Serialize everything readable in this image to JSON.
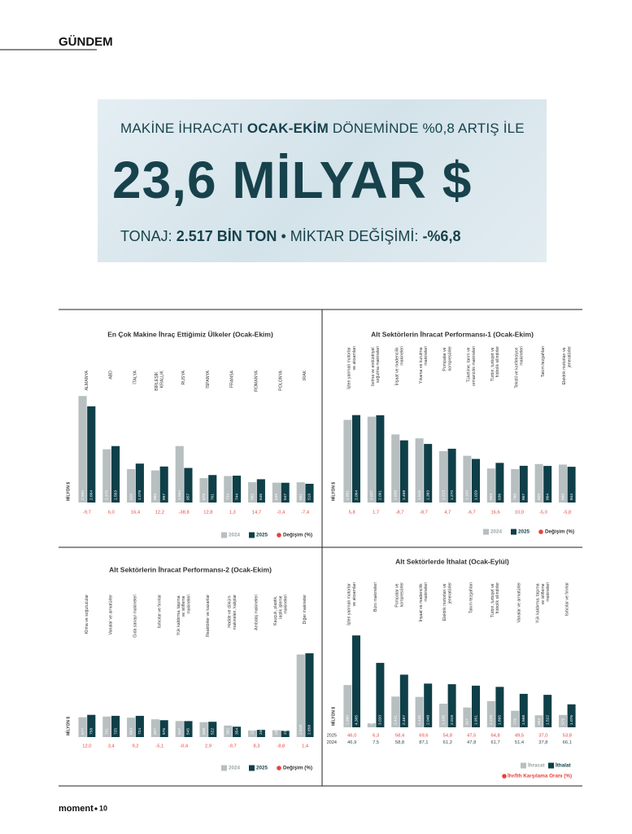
{
  "header": {
    "section": "GÜNDEM"
  },
  "banner": {
    "line1": [
      "MAKİNE İHRACATI",
      "OCAK-EKİM",
      "DÖNEMİNDE %0,8 ARTIŞ İLE"
    ],
    "headline": "23,6 MİLYAR $",
    "line3": [
      "TONAJ:",
      "2.517 BİN TON",
      "• MİKTAR DEĞİŞİMİ:",
      "-%6,8"
    ]
  },
  "chart_data": [
    {
      "type": "bar",
      "title": "En Çok Makine İhraç Ettiğimiz Ülkeler (Ocak-Ekim)",
      "y_label": "MİLYON $",
      "categories": [
        "ALMANYA",
        "ABD",
        "İTALYA",
        "BİRLEŞİK KRALLIK",
        "RUSYA",
        "İSPANYA",
        "FRANSA",
        "ROMANYA",
        "POLONYA",
        "IRAK"
      ],
      "ylim": [
        0,
        3000
      ],
      "series": [
        {
          "name": "2024",
          "color": "#b7bfc1",
          "values": [
            2950,
            1475,
            926,
            889,
            1564,
            675,
            734,
            562,
            549,
            561
          ],
          "value_labels": [
            "2.950",
            "1.475",
            "926",
            "889",
            "1.564",
            "675",
            "734",
            "562",
            "549",
            "561"
          ]
        },
        {
          "name": "2025",
          "color": "#0f3f48",
          "values": [
            2664,
            1563,
            1078,
            997,
            957,
            761,
            744,
            645,
            547,
            519
          ],
          "value_labels": [
            "2.664",
            "1.563",
            "1.078",
            "997",
            "957",
            "761",
            "744",
            "645",
            "547",
            "519"
          ]
        }
      ],
      "change": {
        "name": "Değişim (%)",
        "color": "#e8413c",
        "values": [
          -9.7,
          6.0,
          16.4,
          12.2,
          -38.8,
          12.8,
          1.3,
          14.7,
          -0.4,
          -7.4
        ],
        "value_labels": [
          "-9,7",
          "6,0",
          "16,4",
          "12,2",
          "-38,8",
          "12,8",
          "1,3",
          "14,7",
          "-0,4",
          "-7,4"
        ]
      }
    },
    {
      "type": "bar",
      "title": "Alt Sektörlerin İhracat Performansı-1 (Ocak-Ekim)",
      "y_label": "MİLYON $",
      "categories": [
        "İçten yanmalı motorlar ve aksamları",
        "Isıtma ve endüstriyel soğutma makineleri",
        "İnşaat ve madencilik makineleri",
        "Yıkama ve kurutma makineleri",
        "Pompalar ve kompresörler",
        "Tüketime, tarım ve ormancılık makineleri",
        "Türbin, turbojet ve hidrolik silindirler",
        "Tekstil ve konfeksiyon makineleri",
        "Takım tezgahları",
        "Elektrik motorları ve jeneratörler"
      ],
      "ylim": [
        0,
        2500
      ],
      "series": [
        {
          "name": "2024",
          "color": "#b7bfc1",
          "values": [
            1951,
            2027,
            1608,
            1515,
            1213,
            1103,
            803,
            788,
            909,
            896
          ],
          "value_labels": [
            "1.951",
            "2.027",
            "1.608",
            "1.515",
            "1.213",
            "1.103",
            "803",
            "788",
            "909",
            "896"
          ]
        },
        {
          "name": "2025",
          "color": "#0f3f48",
          "values": [
            2064,
            2061,
            1468,
            1383,
            1270,
            1029,
            936,
            867,
            864,
            844
          ],
          "value_labels": [
            "2.064",
            "2.061",
            "1.468",
            "1.383",
            "1.270",
            "1.029",
            "936",
            "867",
            "864",
            "844"
          ]
        }
      ],
      "change": {
        "name": "Değişim (%)",
        "color": "#e8413c",
        "values": [
          5.8,
          1.7,
          -8.7,
          -8.7,
          4.7,
          -6.7,
          16.6,
          10.0,
          -5.0,
          -5.8
        ],
        "value_labels": [
          "5,8",
          "1,7",
          "-8,7",
          "-8,7",
          "4,7",
          "-6,7",
          "16,6",
          "10,0",
          "-5,0",
          "-5,8"
        ]
      }
    },
    {
      "type": "bar",
      "title": "Alt Sektörlerin İhracat Performansı-2 (Ocak-Ekim)",
      "y_label": "MİLYON $",
      "categories": [
        "Klima ve soğutucular",
        "Vanalar ve armatürler",
        "Gıda sanayi makineleri",
        "Isıtıcılar ve fırınlar",
        "Yük kaldırma, taşıma ve istifleme makineleri",
        "Reaktörler ve kazanlar",
        "Hadde ve döküm makineleri, kalıplar",
        "Ambalaj makineleri",
        "Kauçuk, plastik, lastik işleme makineleri",
        "Diğer makineler"
      ],
      "ylim": [
        0,
        3000
      ],
      "series": [
        {
          "name": "2024",
          "color": "#b7bfc1",
          "values": [
            677,
            701,
            663,
            607,
            547,
            508,
            392,
            227,
            234,
            2818
          ],
          "value_labels": [
            "677",
            "701",
            "663",
            "607",
            "547",
            "508",
            "392",
            "227",
            "234",
            "2.818"
          ]
        },
        {
          "name": "2025",
          "color": "#0f3f48",
          "values": [
            758,
            725,
            724,
            576,
            545,
            522,
            354,
            246,
            213,
            2858
          ],
          "value_labels": [
            "758",
            "725",
            "724",
            "576",
            "545",
            "522",
            "354",
            "246",
            "213",
            "2.858"
          ]
        }
      ],
      "change": {
        "name": "Değişim (%)",
        "color": "#e8413c",
        "values": [
          12.0,
          3.4,
          9.2,
          -5.1,
          -0.4,
          2.9,
          -9.7,
          8.3,
          -8.8,
          1.4
        ],
        "value_labels": [
          "12,0",
          "3,4",
          "9,2",
          "-5,1",
          "-0,4",
          "2,9",
          "-9,7",
          "8,3",
          "-8,8",
          "1,4"
        ]
      }
    },
    {
      "type": "bar",
      "title": "Alt Sektörlerde İthalat (Ocak-Eylül)",
      "y_label": "MİLYON $",
      "categories": [
        "İçten yanmalı motorlar ve aksamları",
        "Büro makineleri",
        "Pompalar ve kompresörler",
        "İnşaat ve madencilik makineleri",
        "Elektrik motorları ve jeneratörler",
        "Takım tezgahları",
        "Türbin, turbojet ve hidrolik silindirler",
        "Vanalar ve armatürler",
        "Yük kaldırma, taşıma ve istifleme makineleri",
        "Isıtıcılar ve fırınlar"
      ],
      "ylim": [
        0,
        5000
      ],
      "series": [
        {
          "name": "İhracat",
          "color": "#b7bfc1",
          "values": [
            1980,
            189,
            1441,
            1425,
            1106,
            927,
            1228,
            776,
            563,
            579
          ],
          "value_labels": [
            "1.980",
            "189",
            "1.441",
            "1.425",
            "1.106",
            "927",
            "1.228",
            "776",
            "563",
            "579"
          ]
        },
        {
          "name": "İthalat",
          "color": "#0f3f48",
          "values": [
            4305,
            3020,
            2467,
            2048,
            2019,
            1951,
            1895,
            1568,
            1522,
            1076
          ],
          "value_labels": [
            "4.305",
            "3.020",
            "2.467",
            "2.048",
            "2.019",
            "1.951",
            "1.895",
            "1.568",
            "1.522",
            "1.076"
          ]
        }
      ],
      "ratio": {
        "name": "İhr/İth Karşılama Oranı (%)",
        "color": "#e8413c",
        "series": [
          {
            "name": "2025",
            "color": "#e8413c",
            "values": [
              46.0,
              6.3,
              58.4,
              69.6,
              54.8,
              47.5,
              64.8,
              49.5,
              37.0,
              53.8
            ],
            "value_labels": [
              "46,0",
              "6,3",
              "58,4",
              "69,6",
              "54,8",
              "47,5",
              "64,8",
              "49,5",
              "37,0",
              "53,8"
            ]
          },
          {
            "name": "2024",
            "color": "#3a4a4f",
            "values": [
              46.9,
              7.5,
              58.8,
              87.1,
              61.2,
              47.8,
              61.7,
              51.4,
              37.8,
              66.1
            ],
            "value_labels": [
              "46,9",
              "7,5",
              "58,8",
              "87,1",
              "61,2",
              "47,8",
              "61,7",
              "51,4",
              "37,8",
              "66,1"
            ]
          }
        ]
      }
    }
  ],
  "footer": {
    "brand": "moment",
    "page": "10"
  }
}
